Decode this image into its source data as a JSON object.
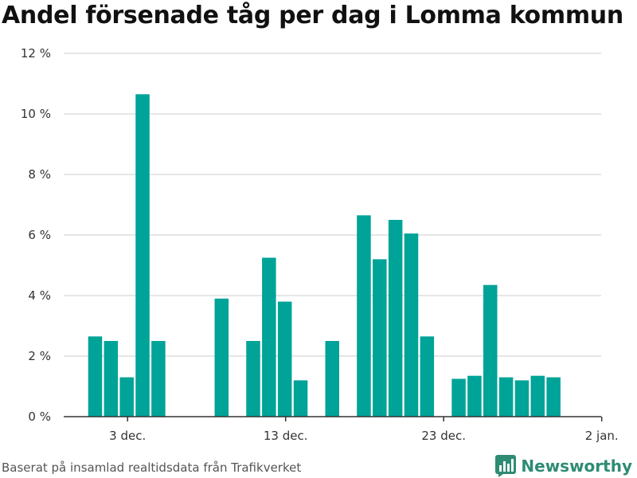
{
  "title": "Andel försenade tåg per dag i Lomma kommun",
  "source": "Baserat på insamlad realtidsdata från Trafikverket",
  "brand": {
    "name": "Newsworthy",
    "color": "#2e8b74",
    "icon": "bar-chart-logo-icon"
  },
  "colors": {
    "bar": "#00a398",
    "grid": "#dddddd",
    "axis": "#333333"
  },
  "chart_data": {
    "type": "bar",
    "xlabel": "",
    "ylabel": "",
    "x_ticks": [
      "3 dec.",
      "13 dec.",
      "23 dec.",
      "2 jan."
    ],
    "y_ticks": [
      "0 %",
      "2 %",
      "4 %",
      "6 %",
      "8 %",
      "10 %",
      "12 %"
    ],
    "ylim": [
      0,
      12
    ],
    "unit": "%",
    "grid": true,
    "categories": [
      "1 dec.",
      "2 dec.",
      "3 dec.",
      "4 dec.",
      "5 dec.",
      "6 dec.",
      "7 dec.",
      "8 dec.",
      "9 dec.",
      "10 dec.",
      "11 dec.",
      "12 dec.",
      "13 dec.",
      "14 dec.",
      "15 dec.",
      "16 dec.",
      "17 dec.",
      "18 dec.",
      "19 dec.",
      "20 dec.",
      "21 dec.",
      "22 dec.",
      "23 dec.",
      "24 dec.",
      "25 dec.",
      "26 dec.",
      "27 dec.",
      "28 dec.",
      "29 dec.",
      "30 dec."
    ],
    "values": [
      2.65,
      2.5,
      1.3,
      10.65,
      2.5,
      null,
      null,
      null,
      3.9,
      null,
      2.5,
      5.25,
      3.8,
      1.2,
      null,
      2.5,
      null,
      6.65,
      5.2,
      6.5,
      6.05,
      2.65,
      null,
      1.25,
      1.35,
      4.35,
      1.3,
      1.2,
      1.35,
      1.3
    ]
  }
}
